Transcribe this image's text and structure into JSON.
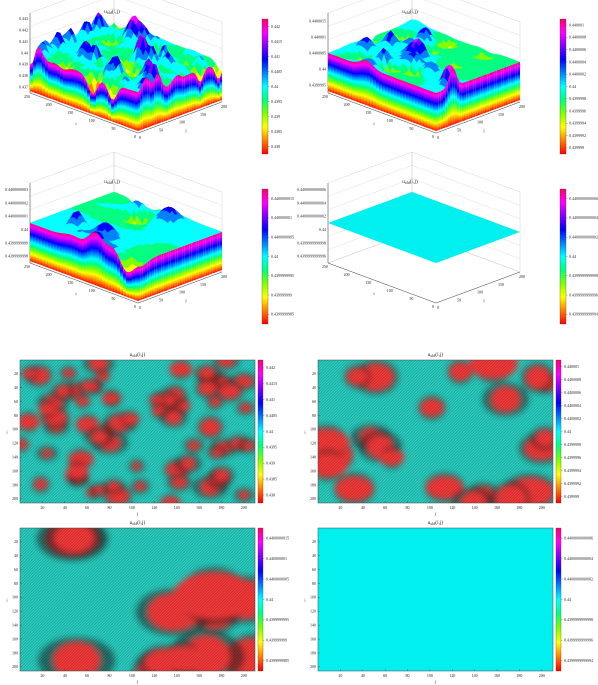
{
  "chart_data": [
    {
      "type": "surface",
      "title": "uold(i,j)",
      "xlabel": "j",
      "ylabel": "i",
      "xticks": [
        "0",
        "50",
        "100",
        "150",
        "200"
      ],
      "yticks": [
        "0",
        "50",
        "100",
        "150",
        "200",
        "250"
      ],
      "zticks": [
        "0.437",
        "0.438",
        "0.439",
        "0.44",
        "0.441",
        "0.442",
        "0.443"
      ],
      "zlim": [
        0.437,
        0.443
      ],
      "colorbar": [
        "0.442",
        "0.4415",
        "0.441",
        "0.4405",
        "0.44",
        "0.4395",
        "0.439",
        "0.4385",
        "0.438"
      ],
      "amplitude": "high"
    },
    {
      "type": "surface",
      "title": "uold(i,j)",
      "xlabel": "j",
      "ylabel": "i",
      "xticks": [
        "0",
        "50",
        "100",
        "150",
        "200"
      ],
      "yticks": [
        "0",
        "50",
        "100",
        "150",
        "200",
        "250"
      ],
      "zticks": [
        "0.4399995",
        "0.44",
        "0.4400005",
        "0.440001",
        "0.4400015"
      ],
      "colorbar": [
        "0.440001",
        "0.4400008",
        "0.4400006",
        "0.4400004",
        "0.4400002",
        "0.44",
        "0.4399998",
        "0.4399996",
        "0.4399994",
        "0.4399992",
        "0.439999"
      ],
      "amplitude": "medium"
    },
    {
      "type": "surface",
      "title": "uold(i,j)",
      "xlabel": "j",
      "ylabel": "i",
      "xticks": [
        "0",
        "50",
        "100",
        "150",
        "200"
      ],
      "yticks": [
        "0",
        "50",
        "100",
        "150",
        "200",
        "250"
      ],
      "zticks": [
        "0.4399999998",
        "0.4399999999",
        "0.44",
        "0.4400000001",
        "0.4400000002",
        "0.4400000003"
      ],
      "colorbar": [
        "0.4400000015",
        "0.440000001",
        "0.4400000005",
        "0.44",
        "0.4399999995",
        "0.439999999",
        "0.4399999985"
      ],
      "amplitude": "low"
    },
    {
      "type": "surface",
      "title": "uold(i,j)",
      "xlabel": "j",
      "ylabel": "i",
      "xticks": [
        "0",
        "50",
        "100",
        "150",
        "200"
      ],
      "yticks": [
        "0",
        "50",
        "100",
        "150",
        "200",
        "250"
      ],
      "zticks": [
        "0.4399999999996",
        "0.4399999999998",
        "0.44",
        "0.4400000000002",
        "0.4400000000004",
        "0.4400000000006"
      ],
      "colorbar": [
        "0.4400000000006",
        "0.4400000000004",
        "0.4400000000002",
        "0.44",
        "0.4399999999998",
        "0.4399999999996",
        "0.4399999999994"
      ],
      "amplitude": "flat"
    },
    {
      "type": "heatmap",
      "title": "uold(i,j)",
      "xlabel": "j",
      "ylabel": "i",
      "xticks": [
        "20",
        "40",
        "60",
        "80",
        "100",
        "120",
        "140",
        "160",
        "180",
        "200"
      ],
      "yticks": [
        "20",
        "40",
        "60",
        "80",
        "100",
        "120",
        "140",
        "160",
        "180",
        "200"
      ],
      "colorbar": [
        "0.442",
        "0.4415",
        "0.441",
        "0.4405",
        "0.44",
        "0.4395",
        "0.439",
        "0.4385",
        "0.438"
      ],
      "blob_scale": "fine"
    },
    {
      "type": "heatmap",
      "title": "uold(i,j)",
      "xlabel": "j",
      "ylabel": "i",
      "xticks": [
        "20",
        "40",
        "60",
        "80",
        "100",
        "120",
        "140",
        "160",
        "180",
        "200"
      ],
      "yticks": [
        "20",
        "40",
        "60",
        "80",
        "100",
        "120",
        "140",
        "160",
        "180",
        "200"
      ],
      "colorbar": [
        "0.440001",
        "0.4400008",
        "0.4400006",
        "0.4400004",
        "0.4400002",
        "0.44",
        "0.4399998",
        "0.4399996",
        "0.4399994",
        "0.4399992",
        "0.439999"
      ],
      "blob_scale": "medium"
    },
    {
      "type": "heatmap",
      "title": "uold(i,j)",
      "xlabel": "j",
      "ylabel": "i",
      "xticks": [
        "20",
        "40",
        "60",
        "80",
        "100",
        "120",
        "140",
        "160",
        "180",
        "200"
      ],
      "yticks": [
        "20",
        "40",
        "60",
        "80",
        "100",
        "120",
        "140",
        "160",
        "180",
        "200"
      ],
      "colorbar": [
        "0.4400000015",
        "0.440000001",
        "0.4400000005",
        "0.44",
        "0.4399999995",
        "0.439999999",
        "0.4399999985"
      ],
      "blob_scale": "coarse"
    },
    {
      "type": "heatmap",
      "title": "uold(i,j)",
      "xlabel": "j",
      "ylabel": "i",
      "xticks": [
        "20",
        "40",
        "60",
        "80",
        "100",
        "120",
        "140",
        "160",
        "180",
        "200"
      ],
      "yticks": [
        "20",
        "40",
        "60",
        "80",
        "100",
        "120",
        "140",
        "160",
        "180",
        "200"
      ],
      "colorbar": [
        "0.4400000000006",
        "0.4400000000004",
        "0.4400000000002",
        "0.44",
        "0.4399999999998",
        "0.4399999999996",
        "0.4399999999994"
      ],
      "blob_scale": "flat"
    }
  ],
  "colors": {
    "scale": [
      "#ff0000",
      "#ff8000",
      "#ffff00",
      "#80ff00",
      "#00ff80",
      "#00ffff",
      "#0080ff",
      "#0000ff",
      "#8000ff",
      "#ff00ff",
      "#ff0066"
    ],
    "heat_bg": "#2ad6c8",
    "heat_blob": "#ff3a3a",
    "heat_dark": "#222222",
    "flat": "#00f0f0",
    "axis": "#444444",
    "grid": "#c8c8c8"
  }
}
